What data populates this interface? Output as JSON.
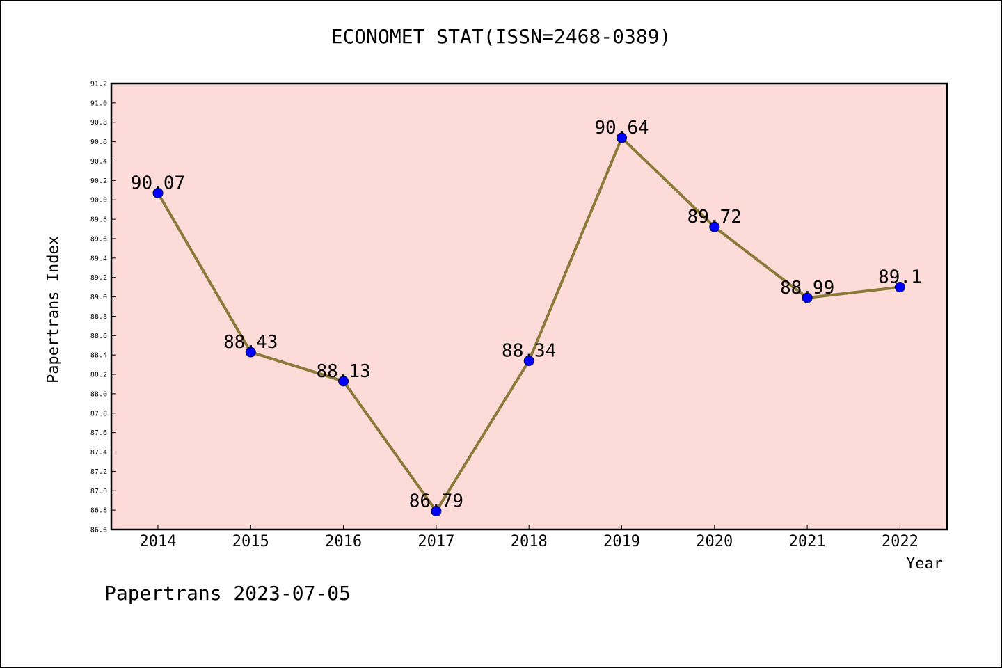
{
  "chart_data": {
    "type": "line",
    "title": "ECONOMET STAT(ISSN=2468-0389)",
    "xlabel": "Year",
    "ylabel": "Papertrans Index",
    "categories": [
      "2014",
      "2015",
      "2016",
      "2017",
      "2018",
      "2019",
      "2020",
      "2021",
      "2022"
    ],
    "series": [
      {
        "values": [
          90.07,
          88.43,
          88.13,
          86.79,
          88.34,
          90.64,
          89.72,
          88.99,
          89.1
        ],
        "labels": [
          "90.07",
          "88.43",
          "88.13",
          "86.79",
          "88.34",
          "90.64",
          "89.72",
          "88.99",
          "89.1"
        ],
        "line_color": "#8b7a3a",
        "marker_color": "#0000ff"
      }
    ],
    "ylim": [
      86.6,
      91.2
    ],
    "yticks": [
      "86.6",
      "86.8",
      "87.0",
      "87.2",
      "87.4",
      "87.6",
      "87.8",
      "88.0",
      "88.2",
      "88.4",
      "88.6",
      "88.8",
      "89.0",
      "89.2",
      "89.4",
      "89.6",
      "89.8",
      "90.0",
      "90.2",
      "90.4",
      "90.6",
      "90.8",
      "91.0",
      "91.2"
    ],
    "plot_background": "#fddbd9",
    "grid": false,
    "legend": "none"
  },
  "footer": {
    "note": "Papertrans 2023-07-05"
  }
}
